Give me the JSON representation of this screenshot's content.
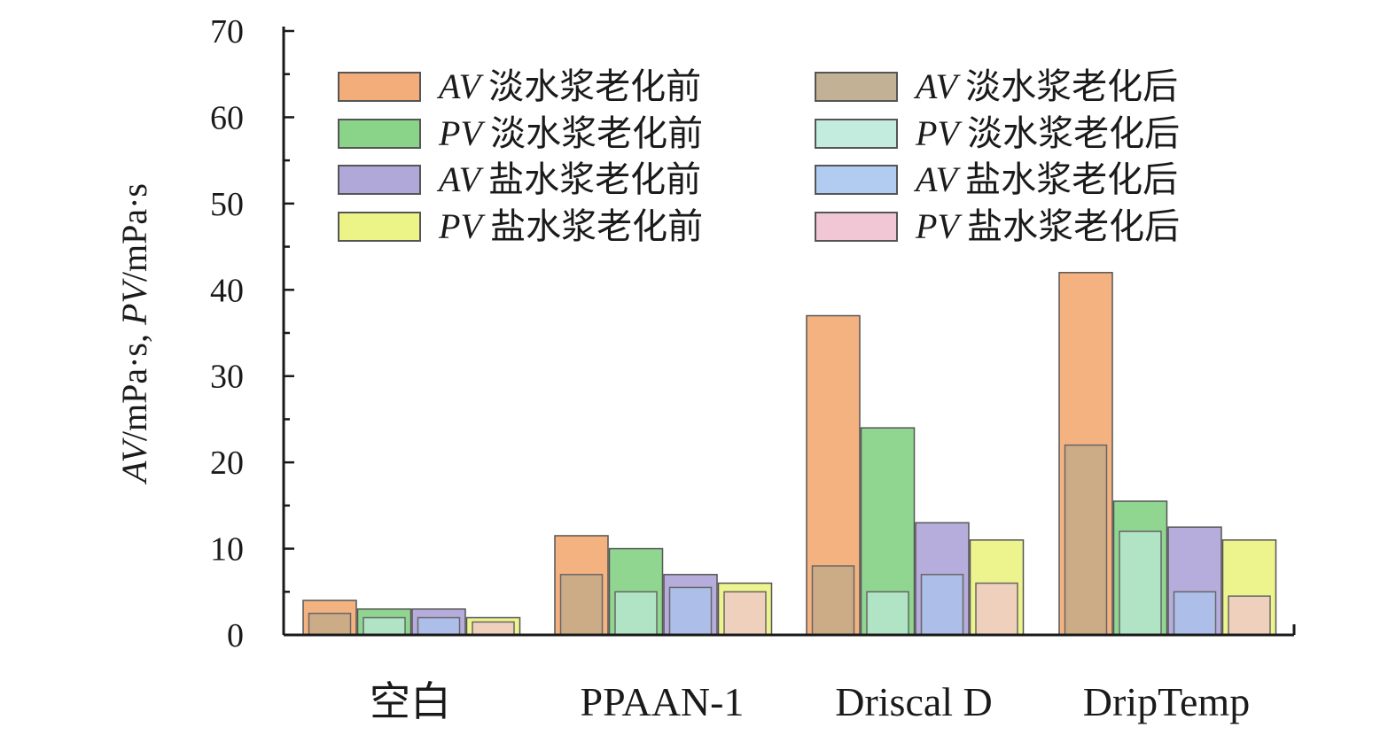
{
  "chart_data": {
    "type": "bar",
    "categories": [
      "空白",
      "PPAAN-1",
      "Driscal D",
      "DripTemp"
    ],
    "ylabel": "AV/mPa·s, PV/mPa·s",
    "ylabel_parts": [
      "AV",
      "/mPa·s, ",
      "PV",
      "/mPa·s"
    ],
    "ylim": [
      0,
      70
    ],
    "yticks": [
      0,
      10,
      20,
      30,
      40,
      50,
      60,
      70
    ],
    "grid": false,
    "legend_position": "top",
    "series": [
      {
        "name": "AV 淡水浆老化前",
        "prefix": "AV",
        "text": "淡水浆老化前",
        "color": "#f2a46b",
        "values": [
          4,
          11.5,
          37,
          42
        ]
      },
      {
        "name": "PV 淡水浆老化前",
        "prefix": "PV",
        "text": "淡水浆老化前",
        "color": "#7ccf7c",
        "values": [
          3,
          10,
          24,
          15.5
        ]
      },
      {
        "name": "AV 盐水浆老化前",
        "prefix": "AV",
        "text": "盐水浆老化前",
        "color": "#a99fd6",
        "values": [
          3,
          7,
          13,
          12.5
        ]
      },
      {
        "name": "PV 盐水浆老化前",
        "prefix": "PV",
        "text": "盐水浆老化前",
        "color": "#eaf27a",
        "values": [
          2,
          6,
          11,
          11
        ]
      },
      {
        "name": "AV 淡水浆老化后",
        "prefix": "AV",
        "text": "淡水浆老化后",
        "color": "#bba98a",
        "values": [
          2.5,
          7,
          8,
          22
        ]
      },
      {
        "name": "PV 淡水浆老化后",
        "prefix": "PV",
        "text": "淡水浆老化后",
        "color": "#bdeadb",
        "values": [
          2,
          5,
          5,
          12
        ]
      },
      {
        "name": "AV 盐水浆老化后",
        "prefix": "AV",
        "text": "盐水浆老化后",
        "color": "#a9c6ee",
        "values": [
          2,
          5.5,
          7,
          5
        ]
      },
      {
        "name": "PV 盐水浆老化后",
        "prefix": "PV",
        "text": "盐水浆老化后",
        "color": "#f0c0d0",
        "values": [
          1.5,
          5,
          6,
          4.5
        ]
      }
    ]
  }
}
